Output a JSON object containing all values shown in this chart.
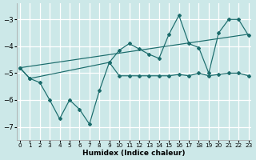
{
  "xlabel": "Humidex (Indice chaleur)",
  "xlim": [
    -0.3,
    23.3
  ],
  "ylim": [
    -7.5,
    -2.4
  ],
  "yticks": [
    -7,
    -6,
    -5,
    -4,
    -3
  ],
  "xticks": [
    0,
    1,
    2,
    3,
    4,
    5,
    6,
    7,
    8,
    9,
    10,
    11,
    12,
    13,
    14,
    15,
    16,
    17,
    18,
    19,
    20,
    21,
    22,
    23
  ],
  "bg_color": "#cce8e8",
  "grid_color": "#ffffff",
  "line_color": "#1a6b6b",
  "line1_x": [
    0,
    1,
    2,
    3,
    4,
    5,
    6,
    7,
    8,
    9,
    10,
    11,
    12,
    13,
    14,
    15,
    16,
    17,
    18,
    19,
    20,
    21,
    22,
    23
  ],
  "line1_y": [
    -4.8,
    -5.2,
    -5.35,
    -6.0,
    -6.7,
    -6.0,
    -6.35,
    -6.9,
    -5.65,
    -4.6,
    -5.1,
    -5.1,
    -5.1,
    -5.1,
    -5.1,
    -5.1,
    -5.05,
    -5.1,
    -5.0,
    -5.1,
    -5.05,
    -5.0,
    -5.0,
    -5.1
  ],
  "line2_x": [
    0,
    1,
    9,
    10,
    11,
    12,
    13,
    14,
    15,
    16,
    17,
    18,
    19,
    20,
    21,
    22,
    23
  ],
  "line2_y": [
    -4.8,
    -5.2,
    -4.6,
    -4.15,
    -3.9,
    -4.1,
    -4.3,
    -4.45,
    -3.55,
    -2.85,
    -3.9,
    -4.05,
    -5.0,
    -3.5,
    -3.0,
    -3.0,
    -3.6
  ],
  "line3_x": [
    0,
    23
  ],
  "line3_y": [
    -4.8,
    -3.55
  ]
}
